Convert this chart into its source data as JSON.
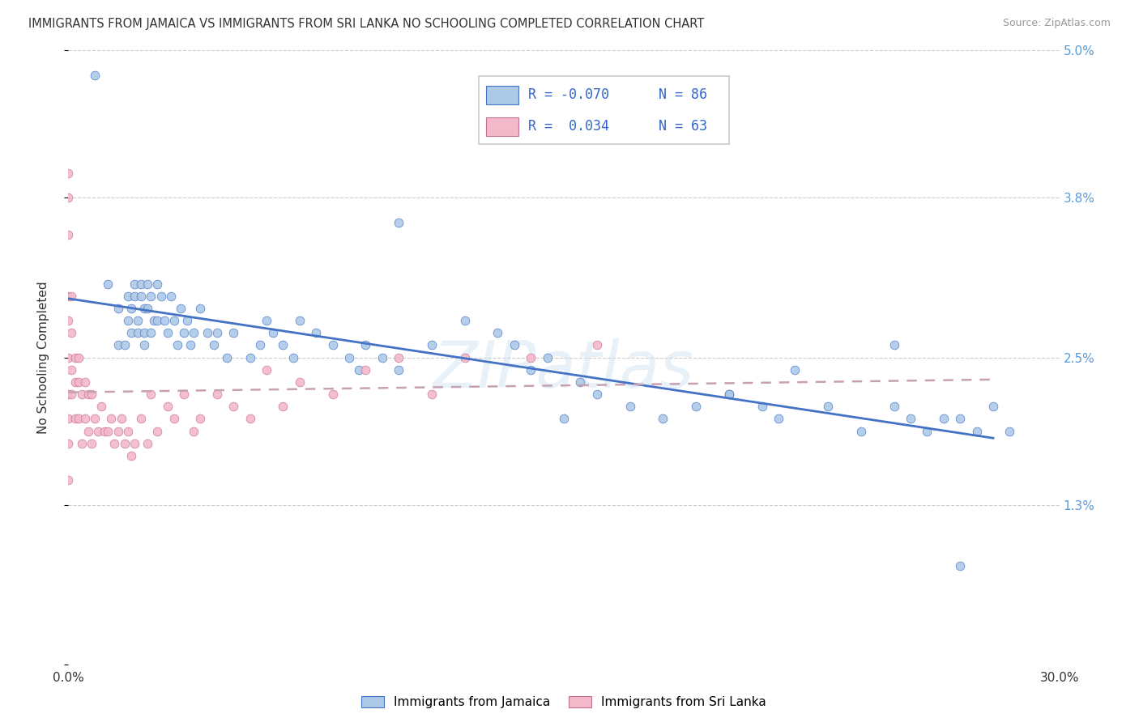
{
  "title": "IMMIGRANTS FROM JAMAICA VS IMMIGRANTS FROM SRI LANKA NO SCHOOLING COMPLETED CORRELATION CHART",
  "source": "Source: ZipAtlas.com",
  "ylabel": "No Schooling Completed",
  "xlim": [
    0.0,
    0.3
  ],
  "ylim": [
    0.0,
    0.05
  ],
  "color_jamaica": "#adc9e8",
  "color_sri_lanka": "#f4b8cb",
  "color_line_jamaica": "#4472c4",
  "color_line_sri_lanka": "#c9a0b0",
  "watermark": "ZIPatlas",
  "legend_r1": "R = -0.070",
  "legend_n1": "N = 86",
  "legend_r2": "R =  0.034",
  "legend_n2": "N = 63",
  "tick_color": "#5b9bd5",
  "jamaica_x": [
    0.008,
    0.012,
    0.015,
    0.015,
    0.017,
    0.018,
    0.018,
    0.019,
    0.019,
    0.02,
    0.02,
    0.021,
    0.021,
    0.022,
    0.022,
    0.023,
    0.023,
    0.023,
    0.024,
    0.024,
    0.025,
    0.025,
    0.026,
    0.027,
    0.027,
    0.028,
    0.029,
    0.03,
    0.031,
    0.032,
    0.033,
    0.034,
    0.035,
    0.036,
    0.037,
    0.038,
    0.04,
    0.042,
    0.044,
    0.045,
    0.048,
    0.05,
    0.055,
    0.058,
    0.06,
    0.062,
    0.065,
    0.068,
    0.07,
    0.075,
    0.08,
    0.085,
    0.088,
    0.09,
    0.095,
    0.1,
    0.11,
    0.12,
    0.13,
    0.135,
    0.14,
    0.145,
    0.155,
    0.16,
    0.17,
    0.18,
    0.19,
    0.2,
    0.21,
    0.215,
    0.22,
    0.23,
    0.24,
    0.25,
    0.255,
    0.26,
    0.265,
    0.27,
    0.275,
    0.28,
    0.285,
    0.1,
    0.15,
    0.2,
    0.25,
    0.27
  ],
  "jamaica_y": [
    0.048,
    0.031,
    0.026,
    0.029,
    0.026,
    0.03,
    0.028,
    0.027,
    0.029,
    0.03,
    0.031,
    0.028,
    0.027,
    0.031,
    0.03,
    0.029,
    0.026,
    0.027,
    0.031,
    0.029,
    0.03,
    0.027,
    0.028,
    0.031,
    0.028,
    0.03,
    0.028,
    0.027,
    0.03,
    0.028,
    0.026,
    0.029,
    0.027,
    0.028,
    0.026,
    0.027,
    0.029,
    0.027,
    0.026,
    0.027,
    0.025,
    0.027,
    0.025,
    0.026,
    0.028,
    0.027,
    0.026,
    0.025,
    0.028,
    0.027,
    0.026,
    0.025,
    0.024,
    0.026,
    0.025,
    0.024,
    0.026,
    0.028,
    0.027,
    0.026,
    0.024,
    0.025,
    0.023,
    0.022,
    0.021,
    0.02,
    0.021,
    0.022,
    0.021,
    0.02,
    0.024,
    0.021,
    0.019,
    0.021,
    0.02,
    0.019,
    0.02,
    0.02,
    0.019,
    0.021,
    0.019,
    0.036,
    0.02,
    0.022,
    0.026,
    0.008
  ],
  "sri_lanka_x": [
    0.0,
    0.0,
    0.0,
    0.0,
    0.0,
    0.0,
    0.0,
    0.0,
    0.0,
    0.0,
    0.001,
    0.001,
    0.001,
    0.001,
    0.002,
    0.002,
    0.002,
    0.003,
    0.003,
    0.003,
    0.004,
    0.004,
    0.005,
    0.005,
    0.006,
    0.006,
    0.007,
    0.007,
    0.008,
    0.009,
    0.01,
    0.011,
    0.012,
    0.013,
    0.014,
    0.015,
    0.016,
    0.017,
    0.018,
    0.019,
    0.02,
    0.022,
    0.024,
    0.025,
    0.027,
    0.03,
    0.032,
    0.035,
    0.038,
    0.04,
    0.045,
    0.05,
    0.055,
    0.06,
    0.065,
    0.07,
    0.08,
    0.09,
    0.1,
    0.11,
    0.12,
    0.14,
    0.16
  ],
  "sri_lanka_y": [
    0.04,
    0.038,
    0.035,
    0.03,
    0.028,
    0.025,
    0.022,
    0.02,
    0.018,
    0.015,
    0.03,
    0.027,
    0.024,
    0.022,
    0.025,
    0.023,
    0.02,
    0.025,
    0.023,
    0.02,
    0.022,
    0.018,
    0.023,
    0.02,
    0.022,
    0.019,
    0.022,
    0.018,
    0.02,
    0.019,
    0.021,
    0.019,
    0.019,
    0.02,
    0.018,
    0.019,
    0.02,
    0.018,
    0.019,
    0.017,
    0.018,
    0.02,
    0.018,
    0.022,
    0.019,
    0.021,
    0.02,
    0.022,
    0.019,
    0.02,
    0.022,
    0.021,
    0.02,
    0.024,
    0.021,
    0.023,
    0.022,
    0.024,
    0.025,
    0.022,
    0.025,
    0.025,
    0.026
  ]
}
